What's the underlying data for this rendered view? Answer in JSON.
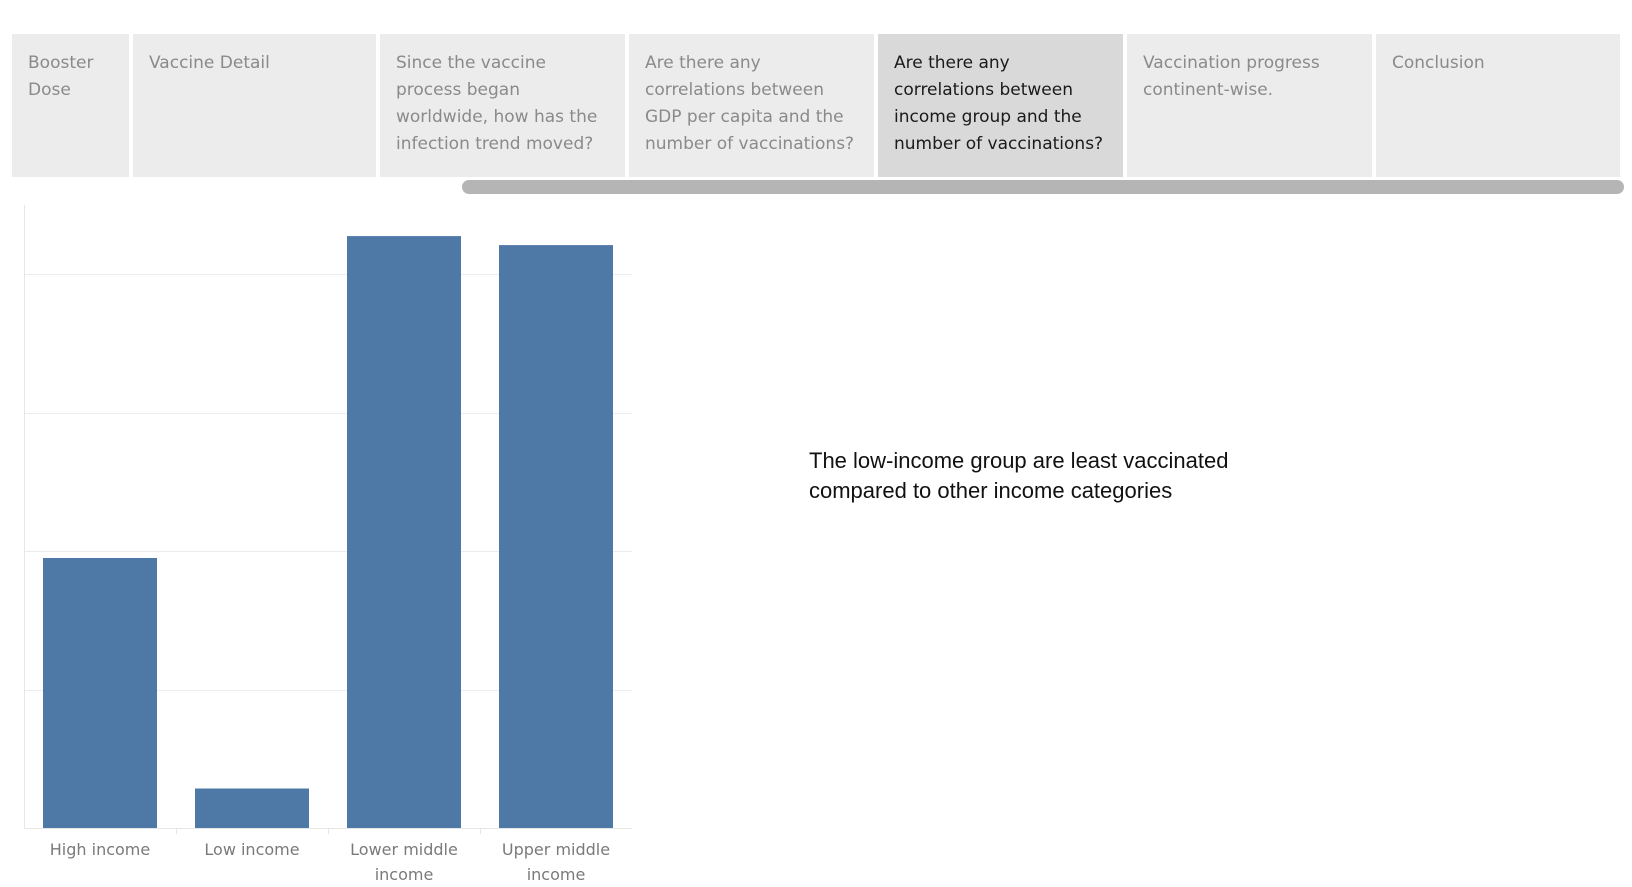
{
  "story": {
    "points": [
      {
        "label": "Booster Dose",
        "active": false
      },
      {
        "label": "Vaccine Detail",
        "active": false
      },
      {
        "label": "Since the vaccine process began worldwide, how has the infection trend moved?",
        "active": false
      },
      {
        "label": "Are there any correlations between GDP per capita and the number of vaccinations?",
        "active": false
      },
      {
        "label": "Are there any correlations between income group and the number of vaccinations?",
        "active": true
      },
      {
        "label": "Vaccination progress continent-wise.",
        "active": false
      },
      {
        "label": "Conclusion",
        "active": false
      }
    ]
  },
  "chart_data": {
    "type": "bar",
    "title": "",
    "xlabel": "",
    "ylabel": "",
    "categories": [
      "High income",
      "Low income",
      "Lower middle income",
      "Upper middle income"
    ],
    "values": [
      39,
      5.7,
      85.5,
      84.2
    ],
    "ylim": [
      0,
      90
    ],
    "gridlines": [
      20,
      40,
      60,
      80
    ],
    "grid": true,
    "bar_color": "#4e79a7"
  },
  "annotation": {
    "lines": [
      "The low-income group are least vaccinated",
      "compared to other income categories"
    ]
  }
}
